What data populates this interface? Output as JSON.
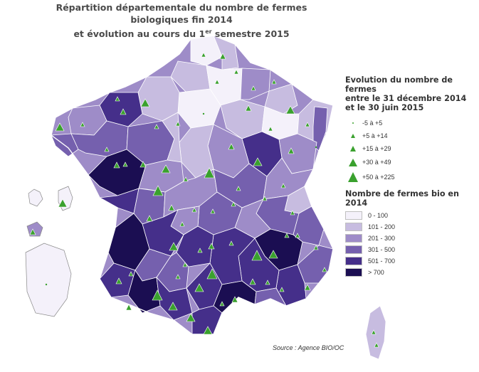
{
  "title": {
    "line1": "Répartition départementale du nombre de fermes biologiques fin 2014",
    "line2_before": "et évolution au cours du 1",
    "line2_sup": "er",
    "line2_after": " semestre 2015"
  },
  "legend_evolution": {
    "title": [
      "Evolution du nombre de fermes",
      "entre le 31 décembre 2014",
      "et le 30 juin 2015"
    ],
    "items": [
      {
        "label": "-5 à +5",
        "symbol": "dot"
      },
      {
        "label": "+5 à +14",
        "symbol": "triangle-xs"
      },
      {
        "label": "+15 à +29",
        "symbol": "triangle-s"
      },
      {
        "label": "+30 à +49",
        "symbol": "triangle-m"
      },
      {
        "label": "+50 à +225",
        "symbol": "triangle-l"
      }
    ]
  },
  "legend_count": {
    "title": "Nombre de fermes bio en 2014",
    "items": [
      {
        "label": "0 - 100",
        "color": "#f4f1fa"
      },
      {
        "label": "101 - 200",
        "color": "#c7bce0"
      },
      {
        "label": "201 - 300",
        "color": "#9e8cc8"
      },
      {
        "label": "301 - 500",
        "color": "#7560ae"
      },
      {
        "label": "501 - 700",
        "color": "#452f8a"
      },
      {
        "label": "> 700",
        "color": "#1b0e52"
      }
    ]
  },
  "source": "Source : Agence BIO/OC",
  "colors": {
    "triangle": "#3aa12e",
    "border": "#ffffff"
  }
}
